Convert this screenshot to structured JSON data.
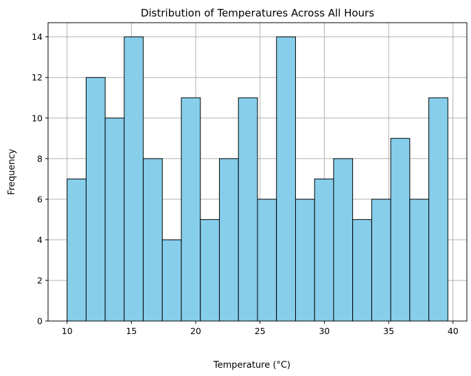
{
  "chart_data": {
    "type": "bar",
    "title": "Distribution of Temperatures Across All Hours",
    "xlabel": "Temperature (°C)",
    "ylabel": "Frequency",
    "bin_edges": [
      10.0,
      11.48,
      12.96,
      14.44,
      15.92,
      17.4,
      18.88,
      20.36,
      21.84,
      23.32,
      24.8,
      26.28,
      27.76,
      29.24,
      30.72,
      32.2,
      33.68,
      35.16,
      36.64,
      38.12,
      39.6
    ],
    "values": [
      7,
      12,
      10,
      14,
      8,
      4,
      11,
      5,
      8,
      11,
      6,
      14,
      6,
      7,
      8,
      5,
      6,
      9,
      6,
      11
    ],
    "xlim": [
      8.52,
      41.08
    ],
    "ylim": [
      0,
      14.7
    ],
    "xticks": [
      10,
      15,
      20,
      25,
      30,
      35,
      40
    ],
    "yticks": [
      0,
      2,
      4,
      6,
      8,
      10,
      12,
      14
    ],
    "grid": true,
    "bar_color": "#87CEEB",
    "edge_color": "#000000",
    "grid_color": "#b0b0b0"
  }
}
